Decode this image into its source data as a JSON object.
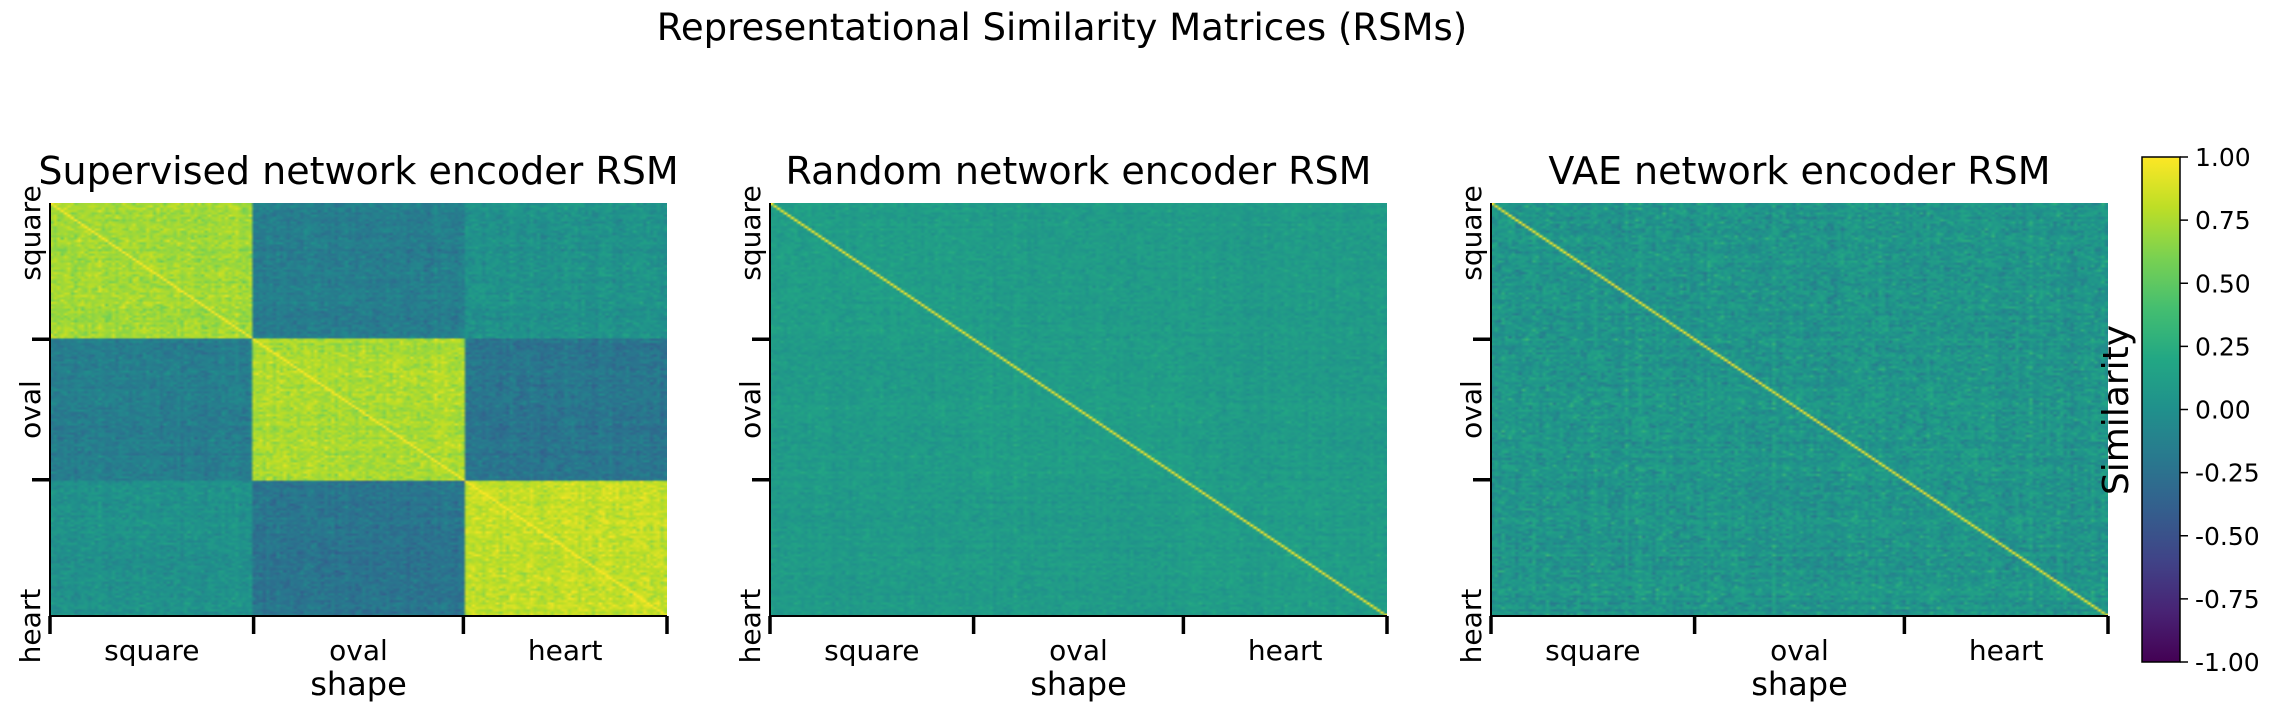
{
  "figure": {
    "title": "Representational Similarity Matrices (RSMs)"
  },
  "chart_data": [
    {
      "type": "heatmap",
      "title": "Supervised network encoder RSM",
      "xlabel": "shape",
      "ylabel": "",
      "categories": [
        "square",
        "oval",
        "heart"
      ],
      "category_proportions": [
        0.33,
        0.34,
        0.33
      ],
      "values": [
        [
          0.72,
          -0.15,
          0.02
        ],
        [
          -0.15,
          0.75,
          -0.22
        ],
        [
          0.02,
          -0.22,
          0.82
        ]
      ],
      "noise": 0.12,
      "diagonal": 1.0
    },
    {
      "type": "heatmap",
      "title": "Random network encoder RSM",
      "xlabel": "shape",
      "ylabel": "",
      "categories": [
        "square",
        "oval",
        "heart"
      ],
      "category_proportions": [
        0.33,
        0.34,
        0.33
      ],
      "values": [
        [
          0.12,
          0.1,
          0.1
        ],
        [
          0.1,
          0.12,
          0.1
        ],
        [
          0.1,
          0.1,
          0.12
        ]
      ],
      "noise": 0.09,
      "diagonal": 1.0
    },
    {
      "type": "heatmap",
      "title": "VAE network encoder RSM",
      "xlabel": "shape",
      "ylabel": "",
      "categories": [
        "square",
        "oval",
        "heart"
      ],
      "category_proportions": [
        0.33,
        0.34,
        0.33
      ],
      "values": [
        [
          0.05,
          0.05,
          0.05
        ],
        [
          0.05,
          0.05,
          0.05
        ],
        [
          0.05,
          0.05,
          0.05
        ]
      ],
      "noise": 0.17,
      "diagonal": 1.0
    }
  ],
  "colorbar": {
    "label": "Similarity",
    "colormap": "viridis",
    "range": [
      -1.0,
      1.0
    ],
    "tick_values": [
      1.0,
      0.75,
      0.5,
      0.25,
      0.0,
      -0.25,
      -0.5,
      -0.75,
      -1.0
    ],
    "tick_labels": [
      "1.00",
      "0.75",
      "0.50",
      "0.25",
      "0.00",
      "-0.25",
      "-0.50",
      "-0.75",
      "-1.00"
    ]
  }
}
